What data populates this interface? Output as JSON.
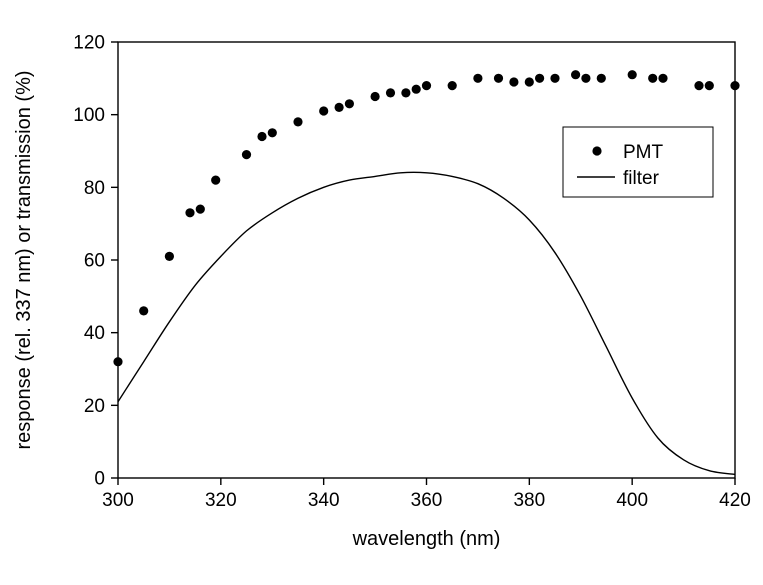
{
  "chart_data": {
    "type": "scatter",
    "title": "",
    "xlabel": "wavelength (nm)",
    "ylabel": "response (rel. 337 nm) or transmission (%)",
    "xlim": [
      300,
      420
    ],
    "ylim": [
      0,
      120
    ],
    "xticks": [
      300,
      320,
      340,
      360,
      380,
      400,
      420
    ],
    "yticks": [
      0,
      20,
      40,
      60,
      80,
      100,
      120
    ],
    "grid": false,
    "legend_position": "upper-right-inside",
    "series": [
      {
        "name": "PMT",
        "type": "scatter",
        "marker": "filled-circle",
        "color": "#000000",
        "x": [
          300,
          305,
          310,
          314,
          316,
          319,
          325,
          328,
          330,
          335,
          340,
          343,
          345,
          350,
          353,
          356,
          358,
          360,
          365,
          370,
          374,
          377,
          380,
          382,
          385,
          389,
          391,
          394,
          400,
          404,
          406,
          413,
          415,
          420
        ],
        "y": [
          32,
          46,
          61,
          73,
          74,
          82,
          89,
          94,
          95,
          98,
          101,
          102,
          103,
          105,
          106,
          106,
          107,
          108,
          108,
          110,
          110,
          109,
          109,
          110,
          110,
          111,
          110,
          110,
          111,
          110,
          110,
          108,
          108,
          108
        ]
      },
      {
        "name": "filter",
        "type": "line",
        "color": "#000000",
        "x": [
          300,
          305,
          310,
          315,
          320,
          325,
          330,
          335,
          340,
          345,
          350,
          355,
          360,
          365,
          370,
          375,
          380,
          385,
          390,
          395,
          400,
          405,
          410,
          415,
          420
        ],
        "y": [
          21,
          32,
          43,
          53,
          61,
          68,
          73,
          77,
          80,
          82,
          83,
          84,
          84,
          83,
          81,
          77,
          71,
          62,
          50,
          36,
          22,
          11,
          5,
          2,
          1
        ]
      }
    ]
  },
  "legend": {
    "items": [
      {
        "label": "PMT",
        "marker": "dot"
      },
      {
        "label": "filter",
        "marker": "line"
      }
    ]
  },
  "colors": {
    "background": "#ffffff",
    "axis": "#000000",
    "marker": "#000000",
    "line": "#000000"
  }
}
